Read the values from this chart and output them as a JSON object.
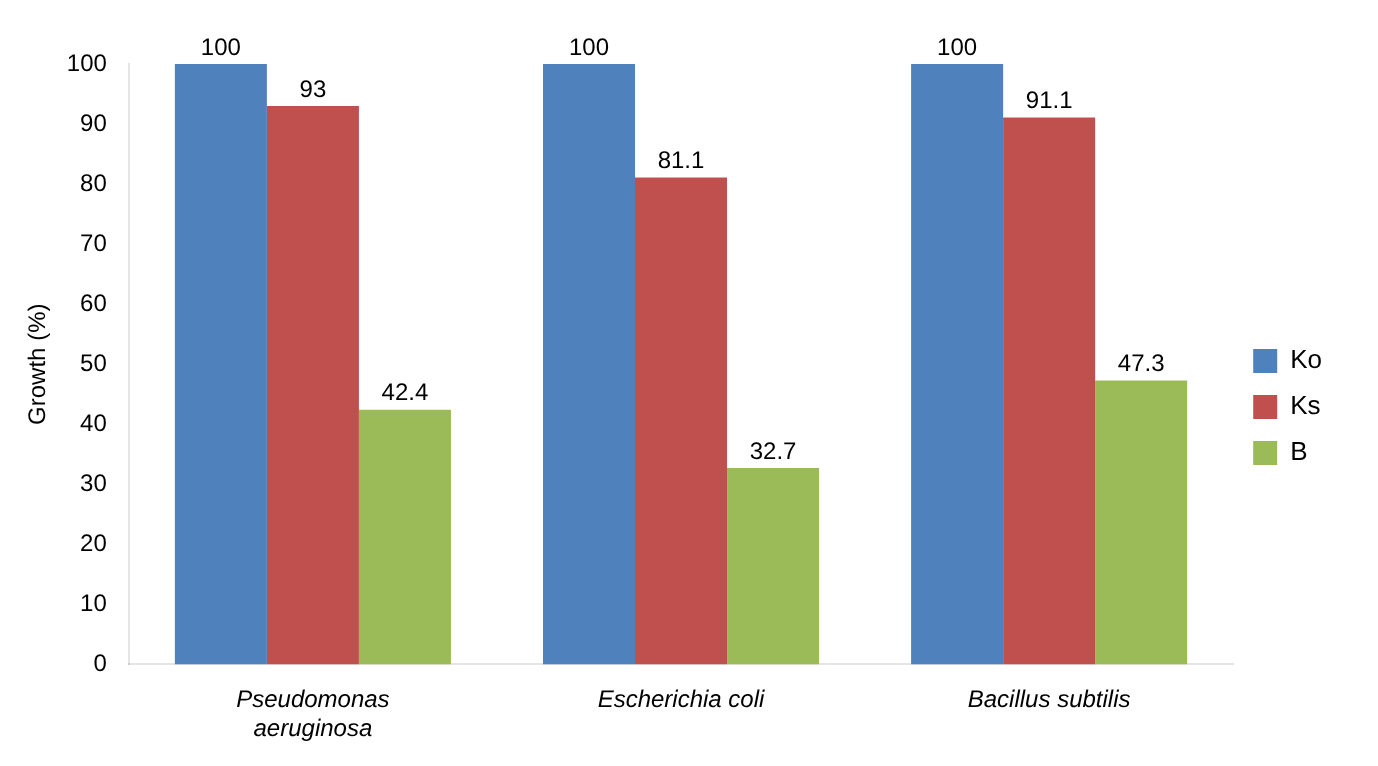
{
  "chart_data": {
    "type": "bar",
    "ylabel": "Growth (%)",
    "categories": [
      "Pseudomonas aeruginosa",
      "Escherichia coli",
      "Bacillus subtilis"
    ],
    "series": [
      {
        "name": "Ko",
        "color": "#4f81bd",
        "values": [
          100,
          100,
          100
        ]
      },
      {
        "name": "Ks",
        "color": "#c0504d",
        "values": [
          93,
          81.1,
          91.1
        ]
      },
      {
        "name": "B",
        "color": "#9bbb59",
        "values": [
          42.4,
          32.7,
          47.3
        ]
      }
    ],
    "ylim": [
      0,
      100
    ],
    "yticks": [
      0,
      10,
      20,
      30,
      40,
      50,
      60,
      70,
      80,
      90,
      100
    ],
    "grid": false,
    "legend": "right",
    "data_labels": true
  }
}
